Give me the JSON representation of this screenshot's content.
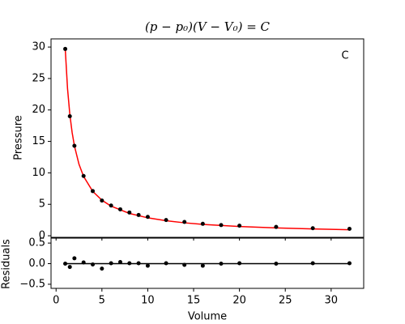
{
  "chart_data": [
    {
      "type": "scatter",
      "title": "(p − p₀)(V − V₀) = C",
      "ylabel": "Pressure",
      "annotation": "C",
      "x": [
        1,
        1.5,
        2,
        3,
        4,
        5,
        6,
        7,
        8,
        9,
        10,
        12,
        14,
        16,
        18,
        20,
        24,
        28,
        32
      ],
      "values": [
        29.7,
        19.0,
        14.3,
        9.5,
        7.1,
        5.6,
        4.8,
        4.2,
        3.7,
        3.3,
        3.0,
        2.5,
        2.2,
        1.9,
        1.7,
        1.6,
        1.4,
        1.2,
        1.1
      ],
      "color": "#000000",
      "fit": {
        "x": [
          1,
          1.25,
          1.5,
          1.75,
          2,
          2.5,
          3,
          4,
          5,
          6,
          8,
          10,
          12,
          14,
          16,
          20,
          24,
          28,
          32
        ],
        "values": [
          29.71,
          23.39,
          19.3,
          16.43,
          14.3,
          11.37,
          9.44,
          7.06,
          5.65,
          4.71,
          3.55,
          2.85,
          2.39,
          2.06,
          1.81,
          1.47,
          1.24,
          1.08,
          0.96
        ],
        "color": "#ff0000"
      },
      "xlim": [
        -0.55,
        33.55
      ],
      "ylim": [
        -0.25,
        31.3
      ],
      "yticks": [
        0,
        5,
        10,
        15,
        20,
        25,
        30
      ]
    },
    {
      "type": "scatter",
      "ylabel": "Residuals",
      "xlabel": "Volume",
      "x": [
        1,
        1.5,
        2,
        3,
        4,
        5,
        6,
        7,
        8,
        9,
        10,
        12,
        14,
        16,
        18,
        20,
        24,
        28,
        32
      ],
      "values": [
        0,
        -0.08,
        0.13,
        0.03,
        -0.02,
        -0.12,
        0.01,
        0.04,
        0.01,
        0.01,
        -0.05,
        0.01,
        -0.03,
        -0.05,
        0.0,
        0.01,
        0,
        0.01,
        0.01
      ],
      "color": "#000000",
      "xlim": [
        -0.55,
        33.55
      ],
      "ylim": [
        -0.6,
        0.62
      ],
      "xticks": [
        0,
        5,
        10,
        15,
        20,
        25,
        30
      ],
      "yticks": [
        {
          "value": 0.5,
          "label": "0.5"
        },
        {
          "value": 0,
          "label": "0.0"
        },
        {
          "value": -0.5,
          "label": "−0.5"
        }
      ]
    }
  ]
}
